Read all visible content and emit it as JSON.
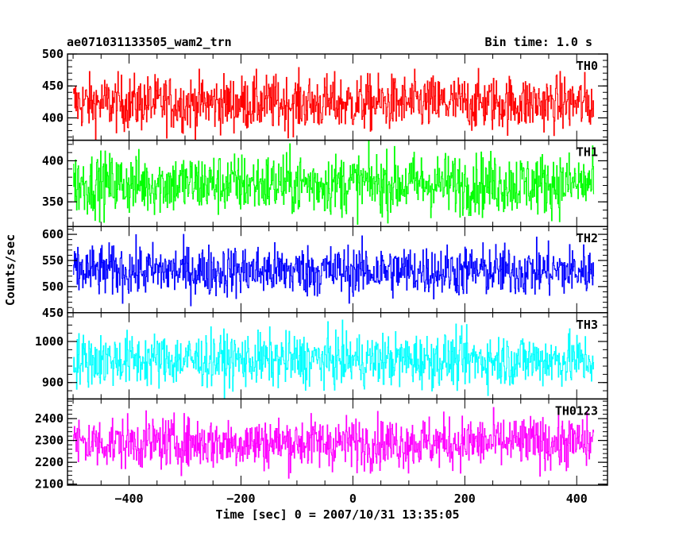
{
  "header": {
    "title": "ae071031133505_wam2_trn",
    "bin_time": "Bin time: 1.0 s"
  },
  "axes": {
    "xlabel": "Time [sec] 0 = 2007/10/31 13:35:05",
    "ylabel": "Counts/sec"
  },
  "chart_data": {
    "type": "line",
    "title": "ae071031133505_wam2_trn",
    "xlabel": "Time [sec] 0 = 2007/10/31 13:35:05",
    "ylabel": "Counts/sec",
    "xlim": [
      -510,
      455
    ],
    "x_range_data": [
      -500,
      430
    ],
    "x_ticks": [
      -400,
      -200,
      0,
      200,
      400
    ],
    "grid": false,
    "panels": [
      {
        "name": "TH0",
        "color": "#ff0000",
        "ylim": [
          365,
          500
        ],
        "yticks": [
          400,
          450,
          500
        ],
        "mean": 423,
        "spread": 22
      },
      {
        "name": "TH1",
        "color": "#00ff00",
        "ylim": [
          320,
          425
        ],
        "yticks": [
          350,
          400
        ],
        "mean": 372,
        "spread": 19
      },
      {
        "name": "TH2",
        "color": "#0000ff",
        "ylim": [
          450,
          615
        ],
        "yticks": [
          450,
          500,
          550,
          600
        ],
        "mean": 530,
        "spread": 25
      },
      {
        "name": "TH3",
        "color": "#00ffff",
        "ylim": [
          860,
          1070
        ],
        "yticks": [
          900,
          1000
        ],
        "mean": 955,
        "spread": 33
      },
      {
        "name": "TH0123",
        "color": "#ff00ff",
        "ylim": [
          2095,
          2490
        ],
        "yticks": [
          2100,
          2200,
          2300,
          2400
        ],
        "mean": 2290,
        "spread": 60
      }
    ]
  }
}
